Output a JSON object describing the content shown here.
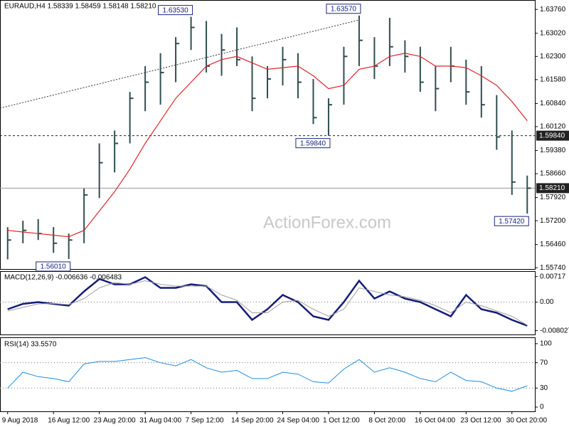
{
  "chart_data": [
    {
      "type": "ohlc",
      "title": "EURAUD,H4 1.58339 1.58459 1.58148 1.58210",
      "watermark": "ActionForex.com",
      "color": "#2f4f4f",
      "categories": [
        "9 Aug 2018",
        null,
        null,
        "16 Aug 12:00",
        null,
        null,
        "23 Aug 20:00",
        null,
        null,
        "31 Aug 04:00",
        null,
        null,
        "7 Sep 12:00",
        null,
        null,
        "14 Sep 20:00",
        null,
        null,
        "24 Sep 04:00",
        null,
        null,
        "1 Oct 12:00",
        null,
        null,
        "8 Oct 20:00",
        null,
        null,
        "16 Oct 04:00",
        null,
        null,
        "23 Oct 12:00",
        null,
        null,
        "30 Oct 20:00",
        null
      ],
      "high": [
        1.57,
        1.572,
        1.5725,
        1.57,
        1.568,
        1.582,
        1.596,
        1.6,
        1.612,
        1.62,
        1.624,
        1.629,
        1.6353,
        1.634,
        1.63,
        1.632,
        1.623,
        1.62,
        1.626,
        1.624,
        1.616,
        1.61,
        1.626,
        1.6357,
        1.629,
        1.635,
        1.628,
        1.626,
        1.62,
        1.626,
        1.622,
        1.62,
        1.611,
        1.6,
        1.586
      ],
      "low": [
        1.56,
        1.565,
        1.566,
        1.562,
        1.5601,
        1.565,
        1.579,
        1.587,
        1.596,
        1.606,
        1.608,
        1.615,
        1.625,
        1.618,
        1.617,
        1.62,
        1.606,
        1.61,
        1.614,
        1.61,
        1.602,
        1.5984,
        1.608,
        1.62,
        1.616,
        1.62,
        1.618,
        1.612,
        1.606,
        1.615,
        1.608,
        1.604,
        1.594,
        1.58,
        1.5742
      ],
      "close": [
        1.566,
        1.569,
        1.568,
        1.565,
        1.566,
        1.58,
        1.59,
        1.596,
        1.61,
        1.615,
        1.618,
        1.627,
        1.632,
        1.62,
        1.625,
        1.622,
        1.61,
        1.616,
        1.622,
        1.615,
        1.604,
        1.608,
        1.623,
        1.628,
        1.62,
        1.626,
        1.623,
        1.615,
        1.613,
        1.62,
        1.612,
        1.608,
        1.598,
        1.584,
        1.5821
      ],
      "ma": {
        "color": "#e0242a",
        "values": [
          1.569,
          1.5685,
          1.568,
          1.5675,
          1.567,
          1.569,
          1.575,
          1.581,
          1.588,
          1.596,
          1.603,
          1.61,
          1.615,
          1.62,
          1.622,
          1.623,
          1.621,
          1.619,
          1.6195,
          1.62,
          1.617,
          1.613,
          1.614,
          1.619,
          1.62,
          1.623,
          1.624,
          1.623,
          1.62,
          1.62,
          1.6195,
          1.617,
          1.614,
          1.609,
          1.603
        ]
      },
      "annotations": [
        {
          "label": "1.63530",
          "value": 1.6353,
          "side": "high"
        },
        {
          "label": "1.63570",
          "value": 1.6357,
          "side": "high"
        },
        {
          "label": "1.59840",
          "value": 1.5984,
          "side": "low"
        },
        {
          "label": "1.56010",
          "value": 1.5601,
          "side": "low"
        },
        {
          "label": "1.57420",
          "value": 1.5742,
          "side": "low"
        }
      ],
      "levels": [
        {
          "value": 1.5984,
          "label": "1.59840",
          "dashed": true
        },
        {
          "value": 1.5821,
          "label": "1.58210",
          "dashed": false
        }
      ],
      "ylim": [
        1.557,
        1.6403
      ],
      "yticks": [
        {
          "value": 1.6376,
          "label": "1.63760"
        },
        {
          "value": 1.6302,
          "label": "1.63020"
        },
        {
          "value": 1.623,
          "label": "1.62300"
        },
        {
          "value": 1.6158,
          "label": "1.61580"
        },
        {
          "value": 1.6084,
          "label": "1.60840"
        },
        {
          "value": 1.6012,
          "label": "1.60120"
        },
        {
          "value": 1.5938,
          "label": "1.59380"
        },
        {
          "value": 1.5866,
          "label": "1.58660"
        },
        {
          "value": 1.5792,
          "label": "1.57920"
        },
        {
          "value": 1.572,
          "label": "1.57200"
        },
        {
          "value": 1.5646,
          "label": "1.56460"
        },
        {
          "value": 1.5574,
          "label": "1.55740"
        }
      ]
    },
    {
      "type": "line",
      "title": "MACD(12,26,9) -0.006636 -0.006483",
      "series": [
        {
          "color": "#141c78",
          "width": 2.5,
          "values": [
            -0.002,
            -0.0005,
            0.0,
            -0.0005,
            -0.001,
            0.003,
            0.0065,
            0.005,
            0.005,
            0.007,
            0.004,
            0.004,
            0.005,
            0.0045,
            0.0,
            0.0,
            -0.005,
            -0.002,
            0.002,
            0.0,
            -0.004,
            -0.005,
            0.0,
            0.006,
            0.001,
            0.003,
            0.001,
            0.0,
            -0.002,
            -0.004,
            0.002,
            -0.002,
            -0.003,
            -0.005,
            -0.006636
          ]
        },
        {
          "color": "#a0a0a0",
          "width": 1,
          "values": [
            -0.0025,
            -0.0015,
            -0.0005,
            -0.0004,
            -0.0007,
            0.001,
            0.004,
            0.0055,
            0.005,
            0.006,
            0.005,
            0.0045,
            0.0045,
            0.0045,
            0.002,
            0.0005,
            -0.003,
            -0.003,
            0.0,
            0.0005,
            -0.002,
            -0.004,
            -0.002,
            0.004,
            0.003,
            0.002,
            0.0015,
            0.0005,
            -0.001,
            -0.003,
            0.0,
            -0.001,
            -0.0025,
            -0.004,
            -0.006483
          ]
        }
      ],
      "ylim": [
        -0.0091,
        0.0085
      ],
      "yticks": [
        0.00717,
        {
          "value": 0,
          "label": "0.00"
        },
        -0.008027
      ],
      "dotted": [
        0
      ]
    },
    {
      "type": "line",
      "title": "RSI(14) 33.5570",
      "series": [
        {
          "color": "#1e8fe0",
          "width": 1,
          "values": [
            30,
            55,
            48,
            45,
            40,
            68,
            72,
            72,
            75,
            78,
            70,
            65,
            75,
            62,
            55,
            58,
            45,
            45,
            55,
            52,
            40,
            38,
            60,
            75,
            55,
            62,
            55,
            45,
            40,
            55,
            42,
            40,
            30,
            25,
            33.557
          ]
        }
      ],
      "ylim": [
        -6.7,
        108.9
      ],
      "yticks": [
        100,
        70,
        30,
        0
      ],
      "dotted": [
        70,
        30
      ]
    }
  ]
}
